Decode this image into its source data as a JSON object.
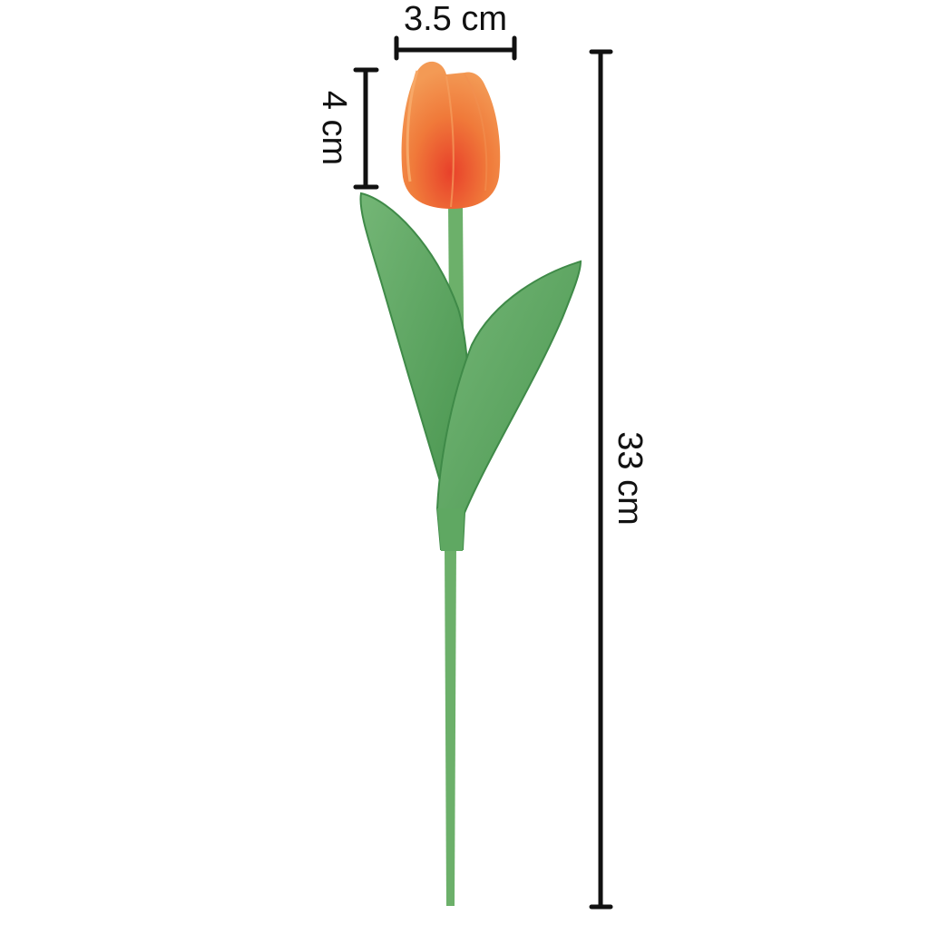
{
  "dimensions": {
    "head_width": "3.5 cm",
    "head_height": "4 cm",
    "total_length": "33 cm"
  },
  "colors": {
    "petal": "#f07a3a",
    "petal_base": "#e8452a",
    "leaf": "#5fa862",
    "leaf_dark": "#3f8a48",
    "stem": "#6cb06a",
    "measure_line": "#111111"
  }
}
